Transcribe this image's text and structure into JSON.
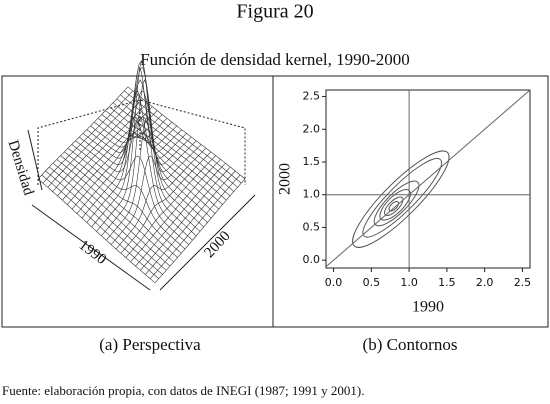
{
  "figure_title": "Figura 20",
  "subtitle": "Función de densidad kernel, 1990-2000",
  "source": "Fuente: elaboración propia, con datos de INEGI (1987; 1991 y 2001).",
  "chart_data": [
    {
      "type": "surface",
      "x_label": "1990",
      "y_label": "2000",
      "z_label": "Densidad",
      "caption": "(a) Perspectiva"
    },
    {
      "type": "contour",
      "x_label": "1990",
      "y_label": "2000",
      "caption": "(b) Contornos",
      "xlim": [
        -0.1,
        2.6
      ],
      "ylim": [
        -0.12,
        2.6
      ],
      "xticks": [
        {
          "value": 0,
          "label": "0.0"
        },
        {
          "value": 0.5,
          "label": "0.5"
        },
        {
          "value": 1,
          "label": "1.0"
        },
        {
          "value": 1.5,
          "label": "1.5"
        },
        {
          "value": 2,
          "label": "2.0"
        },
        {
          "value": 2.5,
          "label": "2.5"
        }
      ],
      "yticks": [
        {
          "value": 0,
          "label": "0.0"
        },
        {
          "value": 0.5,
          "label": "0.5"
        },
        {
          "value": 1,
          "label": "1.0"
        },
        {
          "value": 1.5,
          "label": "1.5"
        },
        {
          "value": 2,
          "label": "2.0"
        },
        {
          "value": 2.5,
          "label": "2.5"
        }
      ],
      "vlines": [
        1
      ],
      "hlines": [
        1
      ]
    }
  ]
}
